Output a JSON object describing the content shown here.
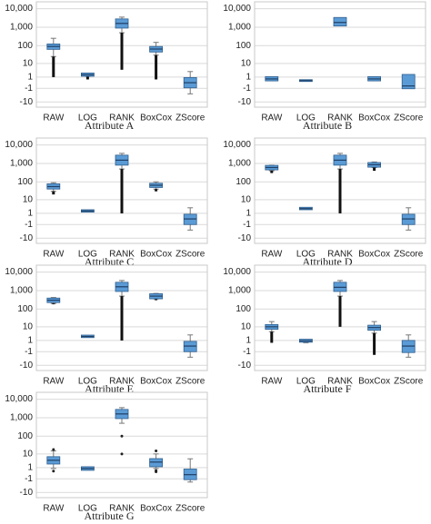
{
  "chart_data": [
    {
      "type": "box",
      "title": "Attribute A",
      "scale": "symlog",
      "grid": true,
      "color": "#5b9bd5",
      "categories": [
        "RAW",
        "LOG",
        "RANK",
        "BoxCox",
        "ZScore"
      ],
      "ylim": [
        -20,
        15000
      ],
      "yticks": [
        -10,
        -1,
        1,
        10,
        100,
        {
          "value": 1000,
          "label": "1,000"
        },
        {
          "value": 10000,
          "label": "10,000"
        }
      ],
      "boxes": [
        {
          "whislo": 25,
          "q1": 70,
          "med": 90,
          "q3": 110,
          "whishi": 250,
          "flier_range": [
            1,
            25
          ]
        },
        {
          "whislo": 1.2,
          "q1": 1.5,
          "med": 1.7,
          "q3": 2,
          "whishi": 2.2,
          "flier_range": [
            0.5,
            1.2
          ]
        },
        {
          "whislo": 500,
          "q1": 1000,
          "med": 1600,
          "q3": 2500,
          "whishi": 3500,
          "flier_range": [
            4,
            500
          ]
        },
        {
          "whislo": 30,
          "q1": 50,
          "med": 65,
          "q3": 80,
          "whishi": 150,
          "flier_range": [
            0.5,
            30
          ]
        },
        {
          "whislo": -3,
          "q1": -0.7,
          "med": 0,
          "q3": 0.7,
          "whishi": 3
        }
      ]
    },
    {
      "type": "box",
      "title": "Attribute B",
      "scale": "symlog",
      "grid": true,
      "color": "#5b9bd5",
      "categories": [
        "RAW",
        "LOG",
        "RANK",
        "BoxCox",
        "ZScore"
      ],
      "ylim": [
        -20,
        15000
      ],
      "yticks": [
        -10,
        -1,
        1,
        10,
        100,
        {
          "value": 1000,
          "label": "1,000"
        },
        {
          "value": 10000,
          "label": "10,000"
        }
      ],
      "boxes": [
        {
          "whislo": 0.4,
          "q1": 0.4,
          "med": 0.6,
          "q3": 0.9,
          "whishi": 0.9
        },
        {
          "whislo": 0.3,
          "q1": 0.3,
          "med": 0.3,
          "q3": 0.3,
          "whishi": 0.3
        },
        {
          "whislo": 1300,
          "q1": 1300,
          "med": 1800,
          "q3": 3000,
          "whishi": 3000
        },
        {
          "whislo": 0.4,
          "q1": 0.4,
          "med": 0.6,
          "q3": 0.9,
          "whishi": 0.9
        },
        {
          "whislo": -0.9,
          "q1": -0.9,
          "med": -0.5,
          "q3": 1.5,
          "whishi": 1.5
        }
      ]
    },
    {
      "type": "box",
      "title": "Attribute C",
      "scale": "symlog",
      "grid": true,
      "color": "#5b9bd5",
      "categories": [
        "RAW",
        "LOG",
        "RANK",
        "BoxCox",
        "ZScore"
      ],
      "ylim": [
        -20,
        15000
      ],
      "yticks": [
        -10,
        -1,
        1,
        10,
        100,
        {
          "value": 1000,
          "label": "1,000"
        },
        {
          "value": 10000,
          "label": "10,000"
        }
      ],
      "boxes": [
        {
          "whislo": 30,
          "q1": 45,
          "med": 55,
          "q3": 70,
          "whishi": 90,
          "flier_range": [
            20,
            30
          ]
        },
        {
          "whislo": 1.5,
          "q1": 1.6,
          "med": 1.7,
          "q3": 1.8,
          "whishi": 1.9
        },
        {
          "whislo": 500,
          "q1": 900,
          "med": 1500,
          "q3": 2500,
          "whishi": 3500,
          "flier_range": [
            1,
            500
          ]
        },
        {
          "whislo": 40,
          "q1": 55,
          "med": 65,
          "q3": 75,
          "whishi": 100,
          "flier_range": [
            30,
            40
          ]
        },
        {
          "whislo": -3,
          "q1": -0.8,
          "med": 0,
          "q3": 0.6,
          "whishi": 3
        }
      ]
    },
    {
      "type": "box",
      "title": "Attribute D",
      "scale": "symlog",
      "grid": true,
      "color": "#5b9bd5",
      "categories": [
        "RAW",
        "LOG",
        "RANK",
        "BoxCox",
        "ZScore"
      ],
      "ylim": [
        -20,
        15000
      ],
      "yticks": [
        -10,
        -1,
        1,
        10,
        100,
        {
          "value": 1000,
          "label": "1,000"
        },
        {
          "value": 10000,
          "label": "10,000"
        }
      ],
      "boxes": [
        {
          "whislo": 400,
          "q1": 500,
          "med": 600,
          "q3": 700,
          "whishi": 800,
          "flier_range": [
            300,
            400
          ]
        },
        {
          "whislo": 2.4,
          "q1": 2.5,
          "med": 2.6,
          "q3": 2.8,
          "whishi": 2.9
        },
        {
          "whislo": 500,
          "q1": 900,
          "med": 1500,
          "q3": 2500,
          "whishi": 3500,
          "flier_range": [
            1,
            500
          ]
        },
        {
          "whislo": 600,
          "q1": 700,
          "med": 850,
          "q3": 1000,
          "whishi": 1200,
          "flier_range": [
            400,
            600
          ]
        },
        {
          "whislo": -3,
          "q1": -0.8,
          "med": 0,
          "q3": 0.6,
          "whishi": 3
        }
      ]
    },
    {
      "type": "box",
      "title": "Attribute E",
      "scale": "symlog",
      "grid": true,
      "color": "#5b9bd5",
      "categories": [
        "RAW",
        "LOG",
        "RANK",
        "BoxCox",
        "ZScore"
      ],
      "ylim": [
        -20,
        15000
      ],
      "yticks": [
        -10,
        -1,
        1,
        10,
        100,
        {
          "value": 1000,
          "label": "1,000"
        },
        {
          "value": 10000,
          "label": "10,000"
        }
      ],
      "boxes": [
        {
          "whislo": 200,
          "q1": 250,
          "med": 300,
          "q3": 350,
          "whishi": 420,
          "flier_range": [
            180,
            200
          ]
        },
        {
          "whislo": 2.1,
          "q1": 2.2,
          "med": 2.3,
          "q3": 2.5,
          "whishi": 2.6
        },
        {
          "whislo": 500,
          "q1": 1000,
          "med": 1600,
          "q3": 2500,
          "whishi": 3500,
          "flier_range": [
            1,
            500
          ]
        },
        {
          "whislo": 350,
          "q1": 400,
          "med": 500,
          "q3": 600,
          "whishi": 700,
          "flier_range": [
            300,
            350
          ]
        },
        {
          "whislo": -3,
          "q1": -0.8,
          "med": 0,
          "q3": 0.6,
          "whishi": 3
        }
      ]
    },
    {
      "type": "box",
      "title": "Attribute F",
      "scale": "symlog",
      "grid": true,
      "color": "#5b9bd5",
      "categories": [
        "RAW",
        "LOG",
        "RANK",
        "BoxCox",
        "ZScore"
      ],
      "ylim": [
        -20,
        15000
      ],
      "yticks": [
        -10,
        -1,
        1,
        10,
        100,
        {
          "value": 1000,
          "label": "1,000"
        },
        {
          "value": 10000,
          "label": "10,000"
        }
      ],
      "boxes": [
        {
          "whislo": 5,
          "q1": 8,
          "med": 10,
          "q3": 12,
          "whishi": 20,
          "flier_range": [
            0.5,
            5
          ]
        },
        {
          "whislo": 0.5,
          "q1": 0.8,
          "med": 0.9,
          "q3": 1.1,
          "whishi": 1.2
        },
        {
          "whislo": 500,
          "q1": 1000,
          "med": 1500,
          "q3": 2500,
          "whishi": 3500,
          "flier_range": [
            10,
            500
          ]
        },
        {
          "whislo": 4,
          "q1": 7,
          "med": 9,
          "q3": 11,
          "whishi": 20,
          "flier_range": [
            -2,
            4
          ]
        },
        {
          "whislo": -3,
          "q1": -1,
          "med": 0,
          "q3": 0.8,
          "whishi": 3
        }
      ]
    },
    {
      "type": "box",
      "title": "Attribute G",
      "scale": "symlog",
      "grid": true,
      "color": "#5b9bd5",
      "categories": [
        "RAW",
        "LOG",
        "RANK",
        "BoxCox",
        "ZScore"
      ],
      "ylim": [
        -20,
        15000
      ],
      "yticks": [
        -10,
        -1,
        1,
        10,
        100,
        {
          "value": 1000,
          "label": "1,000"
        },
        {
          "value": 10000,
          "label": "10,000"
        }
      ],
      "boxes": [
        {
          "whislo": 0.8,
          "q1": 2.5,
          "med": 4,
          "q3": 6,
          "whishi": 15,
          "outliers": [
            0.3,
            18
          ]
        },
        {
          "whislo": 0.5,
          "q1": 0.6,
          "med": 0.8,
          "q3": 1,
          "whishi": 1.2
        },
        {
          "whislo": 500,
          "q1": 1000,
          "med": 1600,
          "q3": 2500,
          "whishi": 3500,
          "outliers": [
            100,
            10
          ]
        },
        {
          "whislo": 0.8,
          "q1": 1.5,
          "med": 3,
          "q3": 4.5,
          "whishi": 10,
          "outliers": [
            0.4,
            0.2,
            15
          ]
        },
        {
          "whislo": -2,
          "q1": -1,
          "med": -0.2,
          "q3": 0.5,
          "whishi": 5
        }
      ]
    }
  ]
}
